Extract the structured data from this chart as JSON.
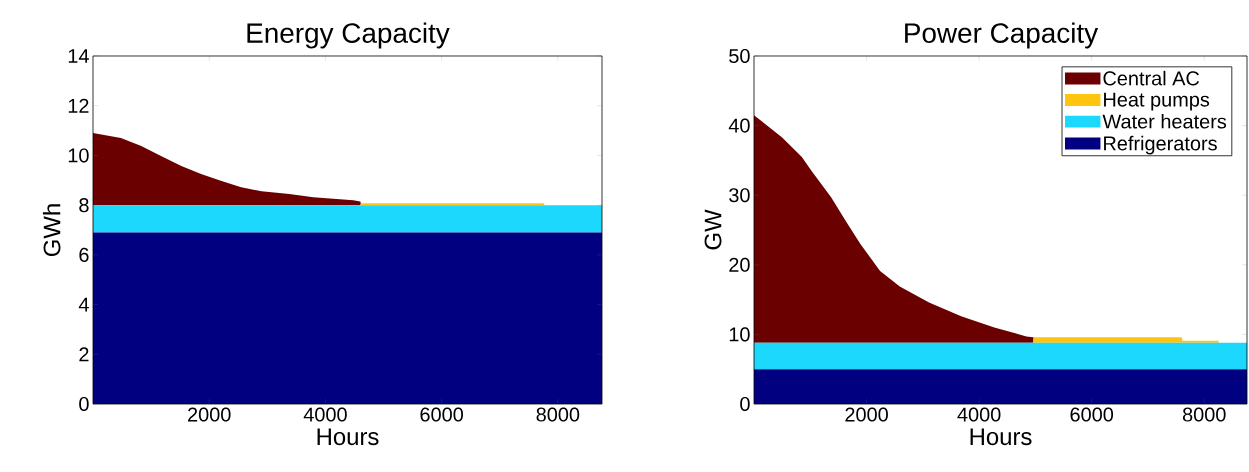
{
  "chart_data": [
    {
      "type": "area",
      "title": "Energy Capacity",
      "xlabel": "Hours",
      "ylabel": "GWh",
      "stacked": true,
      "legend": false,
      "grid": false,
      "xlim": [
        0,
        8760
      ],
      "ylim": [
        0,
        14
      ],
      "xticks": [
        2000,
        4000,
        6000,
        8000
      ],
      "yticks": [
        0,
        2,
        4,
        6,
        8,
        10,
        12,
        14
      ],
      "x": [
        0,
        480,
        830,
        1170,
        1520,
        1860,
        2200,
        2550,
        2900,
        3380,
        3790,
        4480,
        4600,
        4610,
        7760,
        7770,
        8760
      ],
      "series": [
        {
          "color": "#000080",
          "values": [
            6.9,
            6.9,
            6.9,
            6.9,
            6.9,
            6.9,
            6.9,
            6.9,
            6.9,
            6.9,
            6.9,
            6.9,
            6.9,
            6.9,
            6.9,
            6.9,
            6.9
          ]
        },
        {
          "color": "#1cd8fc",
          "values": [
            1.1,
            1.1,
            1.1,
            1.1,
            1.1,
            1.1,
            1.1,
            1.1,
            1.1,
            1.1,
            1.1,
            1.1,
            1.1,
            1.1,
            1.1,
            1.1,
            1.1
          ]
        },
        {
          "color": "#fec40e",
          "values": [
            0,
            0,
            0,
            0,
            0,
            0,
            0,
            0,
            0,
            0,
            0,
            0,
            0,
            0.08,
            0.08,
            0,
            0
          ]
        },
        {
          "color": "#6a0000",
          "values": [
            2.9,
            2.7,
            2.38,
            1.98,
            1.57,
            1.25,
            0.98,
            0.72,
            0.56,
            0.45,
            0.32,
            0.2,
            0.15,
            0,
            0,
            0,
            0
          ]
        }
      ]
    },
    {
      "type": "area",
      "title": "Power Capacity",
      "xlabel": "Hours",
      "ylabel": "GW",
      "stacked": true,
      "legend": "top right",
      "grid": false,
      "xlim": [
        0,
        8760
      ],
      "ylim": [
        0,
        50
      ],
      "xticks": [
        2000,
        4000,
        6000,
        8000
      ],
      "yticks": [
        0,
        10,
        20,
        30,
        40,
        50
      ],
      "x": [
        0,
        500,
        850,
        1020,
        1370,
        1630,
        1890,
        2240,
        2590,
        3110,
        3680,
        4270,
        4840,
        4960,
        4970,
        7600,
        7610,
        8250,
        8260,
        8760
      ],
      "series": [
        {
          "name": "Refrigerators",
          "color": "#000080",
          "values": [
            5,
            5,
            5,
            5,
            5,
            5,
            5,
            5,
            5,
            5,
            5,
            5,
            5,
            5,
            5,
            5,
            5,
            5,
            5,
            5
          ]
        },
        {
          "name": "Water heaters",
          "color": "#1cd8fc",
          "values": [
            3.8,
            3.8,
            3.8,
            3.8,
            3.8,
            3.8,
            3.8,
            3.8,
            3.8,
            3.8,
            3.8,
            3.8,
            3.8,
            3.8,
            3.8,
            3.8,
            3.8,
            3.8,
            3.8,
            3.8
          ]
        },
        {
          "name": "Heat pumps",
          "color": "#fec40e",
          "values": [
            0,
            0,
            0,
            0,
            0,
            0,
            0,
            0,
            0,
            0,
            0,
            0,
            0,
            0,
            0.8,
            0.8,
            0.3,
            0.3,
            0,
            0
          ]
        },
        {
          "name": "Central AC",
          "color": "#6a0000",
          "values": [
            32.7,
            29.5,
            26.7,
            24.7,
            20.9,
            17.5,
            14.2,
            10.3,
            8.1,
            5.8,
            3.8,
            2.2,
            0.9,
            0.8,
            0,
            0,
            0,
            0,
            0,
            0
          ]
        }
      ]
    }
  ]
}
